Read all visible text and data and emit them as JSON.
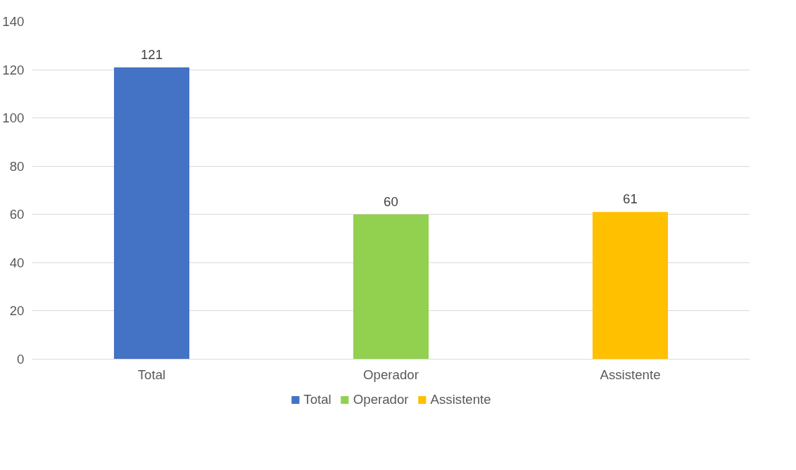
{
  "chart_data": {
    "type": "bar",
    "categories": [
      "Total",
      "Operador",
      "Assistente"
    ],
    "series": [
      {
        "name": "Total",
        "color": "#4472c4",
        "values": [
          121,
          null,
          null
        ]
      },
      {
        "name": "Operador",
        "color": "#92d050",
        "values": [
          null,
          60,
          null
        ]
      },
      {
        "name": "Assistente",
        "color": "#ffc000",
        "values": [
          null,
          null,
          61
        ]
      }
    ],
    "ylim": [
      0,
      140
    ],
    "yticks": [
      0,
      20,
      40,
      60,
      80,
      100,
      120,
      140
    ],
    "grid": "y",
    "legend": "bottom",
    "data_labels": true
  }
}
